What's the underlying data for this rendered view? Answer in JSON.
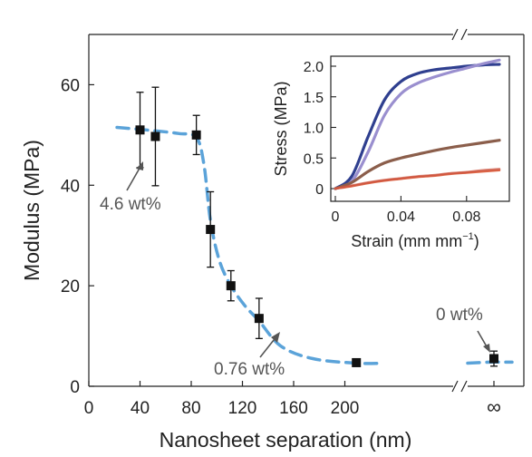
{
  "chart_data": [
    {
      "type": "scatter",
      "xlabel": "Nanosheet separation (nm)",
      "ylabel": "Modulus (MPa)",
      "xlim": [
        0,
        240
      ],
      "ylim": [
        0,
        70
      ],
      "x_axis_break": true,
      "x_ticks": [
        "0",
        "40",
        "80",
        "120",
        "160",
        "200"
      ],
      "x_infinity_tick": "∞",
      "y_ticks": [
        "0",
        "20",
        "40",
        "60"
      ],
      "points": [
        {
          "x": 40,
          "y": 51,
          "err": 7.5
        },
        {
          "x": 52,
          "y": 49.7,
          "err": 9.8
        },
        {
          "x": 84,
          "y": 50,
          "err": 3.9
        },
        {
          "x": 95,
          "y": 31.2,
          "err": 7.5
        },
        {
          "x": 111,
          "y": 20,
          "err": 3
        },
        {
          "x": 133,
          "y": 13.5,
          "err": 4
        },
        {
          "x": 209,
          "y": 4.7,
          "err": 0
        },
        {
          "x": "∞",
          "y": 5.5,
          "err": 1.5
        }
      ],
      "trend_line": {
        "style": "dashed",
        "color": "#5ba3d9",
        "x": [
          22,
          45,
          70,
          84,
          90,
          95,
          102,
          111,
          122,
          133,
          150,
          175,
          209,
          230
        ],
        "y": [
          51.5,
          51,
          50.3,
          49.5,
          44,
          33,
          25,
          20,
          16,
          13,
          8,
          5.5,
          4.6,
          4.6
        ]
      },
      "annotations": [
        {
          "text": "4.6 wt%"
        },
        {
          "text": "0.76 wt%"
        },
        {
          "text": "0 wt%"
        }
      ]
    },
    {
      "type": "line",
      "xlabel": "Strain (mm mm",
      "xlabel_sup": "−1",
      "xlabel_end": ")",
      "ylabel": "Stress (MPa)",
      "xlim": [
        0,
        0.1
      ],
      "ylim": [
        0,
        2.1
      ],
      "x_ticks": [
        "0",
        "0.04",
        "0.08"
      ],
      "y_ticks": [
        "0",
        "0.5",
        "1.0",
        "1.5",
        "2.0"
      ],
      "series": [
        {
          "color": "#2f3f8f",
          "x": [
            0,
            0.01,
            0.02,
            0.03,
            0.04,
            0.05,
            0.06,
            0.07,
            0.08,
            0.09,
            0.1
          ],
          "y": [
            0,
            0.2,
            0.85,
            1.45,
            1.75,
            1.88,
            1.94,
            1.97,
            2.0,
            2.02,
            2.03
          ]
        },
        {
          "color": "#9a8fcf",
          "x": [
            0,
            0.01,
            0.02,
            0.03,
            0.04,
            0.05,
            0.06,
            0.07,
            0.08,
            0.09,
            0.1
          ],
          "y": [
            0,
            0.12,
            0.6,
            1.2,
            1.55,
            1.72,
            1.82,
            1.9,
            1.97,
            2.04,
            2.1
          ]
        },
        {
          "color": "#8b5e4b",
          "x": [
            0,
            0.01,
            0.02,
            0.03,
            0.04,
            0.05,
            0.06,
            0.07,
            0.08,
            0.09,
            0.1
          ],
          "y": [
            0,
            0.1,
            0.28,
            0.42,
            0.5,
            0.56,
            0.62,
            0.67,
            0.71,
            0.75,
            0.79
          ]
        },
        {
          "color": "#e06a4a",
          "x": [
            0,
            0.01,
            0.02,
            0.03,
            0.04,
            0.05,
            0.06,
            0.07,
            0.08,
            0.09,
            0.1
          ],
          "y": [
            0,
            0.04,
            0.09,
            0.13,
            0.16,
            0.19,
            0.21,
            0.24,
            0.26,
            0.28,
            0.3
          ]
        },
        {
          "color": "#c9503c",
          "x": [
            0,
            0.01,
            0.02,
            0.03,
            0.04,
            0.05,
            0.06,
            0.07,
            0.08,
            0.09,
            0.1
          ],
          "y": [
            0,
            0.05,
            0.1,
            0.14,
            0.17,
            0.2,
            0.22,
            0.25,
            0.27,
            0.3,
            0.32
          ]
        }
      ]
    }
  ]
}
